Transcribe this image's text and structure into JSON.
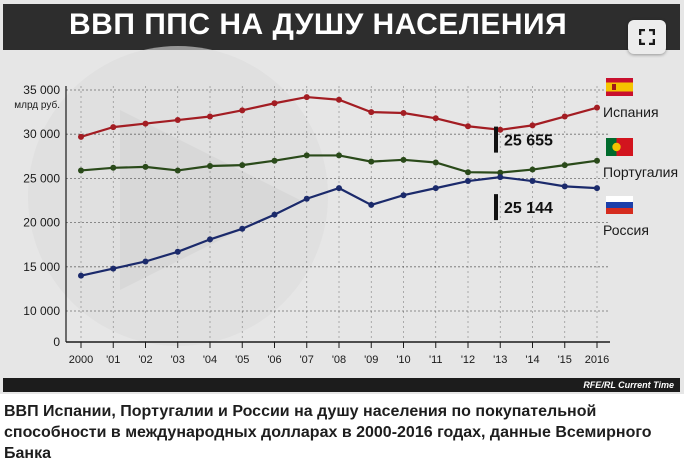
{
  "header": {
    "title": "ВВП ППС НА ДУШУ НАСЕЛЕНИЯ"
  },
  "footer": {
    "credit": "RFE/RL Current Time",
    "caption": "ВВП Испании, Португалии и России на душу населения по покупательной способности в международных долларах в 2000-2016 годах, данные Всемирного Банка"
  },
  "chart_data": {
    "type": "line",
    "title": "ВВП ППС НА ДУШУ НАСЕЛЕНИЯ",
    "ylabel": "млрд руб.",
    "xlabel": "",
    "ylim": [
      0,
      35000
    ],
    "yticks": [
      0,
      10000,
      15000,
      20000,
      25000,
      30000,
      35000
    ],
    "ytick_labels": [
      "0",
      "10 000",
      "15 000",
      "20 000",
      "25 000",
      "30 000",
      "35 000"
    ],
    "categories": [
      "2000",
      "'01",
      "'02",
      "'03",
      "'04",
      "'05",
      "'06",
      "'07",
      "'08",
      "'09",
      "'10",
      "'11",
      "'12",
      "'13",
      "'14",
      "'15",
      "2016"
    ],
    "grid": true,
    "legend_position": "right",
    "series": [
      {
        "name": "Испания",
        "color": "#a31d23",
        "flag": "spain-flag",
        "values": [
          29700,
          30800,
          31200,
          31600,
          32000,
          32700,
          33500,
          34200,
          33900,
          32500,
          32400,
          31800,
          30900,
          30500,
          31000,
          32000,
          33000
        ]
      },
      {
        "name": "Португалия",
        "color": "#2a4a1a",
        "flag": "portugal-flag",
        "values": [
          25900,
          26200,
          26300,
          25900,
          26400,
          26500,
          27000,
          27600,
          27600,
          26900,
          27100,
          26800,
          25700,
          25655,
          26000,
          26500,
          27000
        ]
      },
      {
        "name": "Россия",
        "color": "#1b2a6b",
        "flag": "russia-flag",
        "values": [
          14000,
          14800,
          15600,
          16700,
          18100,
          19300,
          20900,
          22700,
          23900,
          22000,
          23100,
          23900,
          24700,
          25144,
          24700,
          24100,
          23900
        ]
      }
    ],
    "annotations": [
      {
        "text": "25 655",
        "series": "Португалия",
        "x": "'13",
        "value": 25655
      },
      {
        "text": "25 144",
        "series": "Россия",
        "x": "'13",
        "value": 25144
      }
    ]
  }
}
